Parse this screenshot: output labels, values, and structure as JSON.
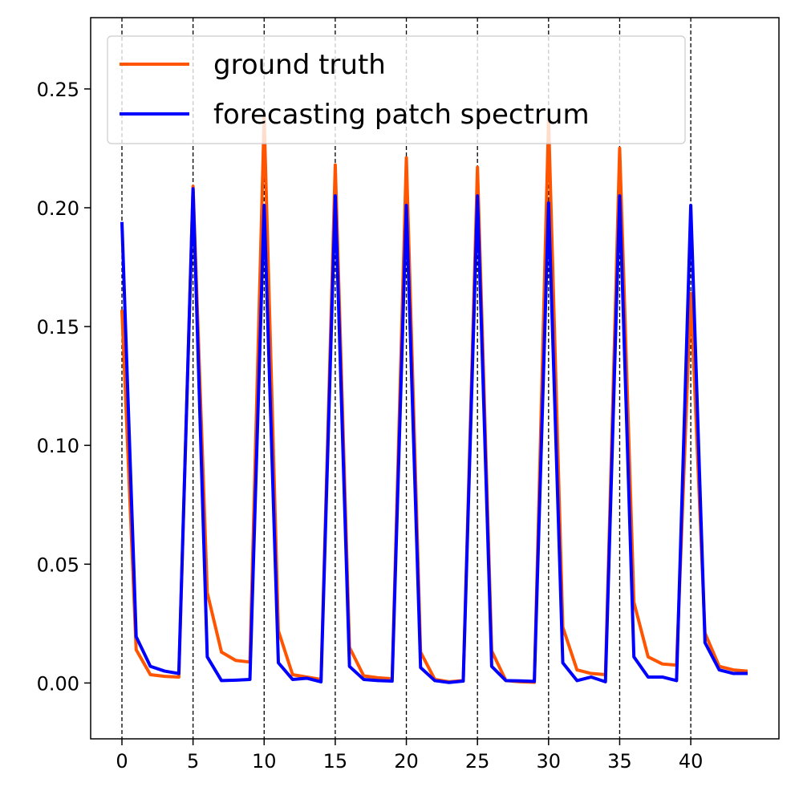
{
  "chart_data": {
    "type": "line",
    "title": "",
    "xlabel": "",
    "ylabel": "",
    "xlim": [
      -2.2,
      46.2
    ],
    "ylim": [
      -0.0235,
      0.28
    ],
    "x_ticks": [
      0,
      5,
      10,
      15,
      20,
      25,
      30,
      35,
      40
    ],
    "y_ticks": [
      0.0,
      0.05,
      0.1,
      0.15,
      0.2,
      0.25
    ],
    "x_tick_labels": [
      "0",
      "5",
      "10",
      "15",
      "20",
      "25",
      "30",
      "35",
      "40"
    ],
    "y_tick_labels": [
      "0.00",
      "0.05",
      "0.10",
      "0.15",
      "0.20",
      "0.25"
    ],
    "vlines": [
      0,
      5,
      10,
      15,
      20,
      25,
      30,
      35,
      40
    ],
    "grid": false,
    "legend_position": "top-left",
    "x": [
      0,
      1,
      2,
      3,
      4,
      5,
      6,
      7,
      8,
      9,
      10,
      11,
      12,
      13,
      14,
      15,
      16,
      17,
      18,
      19,
      20,
      21,
      22,
      23,
      24,
      25,
      26,
      27,
      28,
      29,
      30,
      31,
      32,
      33,
      34,
      35,
      36,
      37,
      38,
      39,
      40,
      41,
      42,
      43,
      44
    ],
    "series": [
      {
        "name": "ground truth",
        "color": "#ff5500",
        "values": [
          0.157,
          0.014,
          0.0035,
          0.0028,
          0.0025,
          0.209,
          0.038,
          0.013,
          0.0095,
          0.0088,
          0.238,
          0.022,
          0.0035,
          0.0025,
          0.0015,
          0.218,
          0.015,
          0.003,
          0.0022,
          0.0018,
          0.221,
          0.013,
          0.0015,
          0.0005,
          0.001,
          0.217,
          0.0135,
          0.001,
          0.0005,
          0.0003,
          0.237,
          0.0235,
          0.0055,
          0.004,
          0.0035,
          0.225,
          0.034,
          0.011,
          0.008,
          0.0075,
          0.164,
          0.021,
          0.007,
          0.0055,
          0.005
        ]
      },
      {
        "name": "forecasting patch spectrum",
        "color": "#0000ff",
        "values": [
          0.194,
          0.0195,
          0.007,
          0.005,
          0.004,
          0.208,
          0.011,
          0.001,
          0.0012,
          0.0015,
          0.201,
          0.0085,
          0.0015,
          0.002,
          0.0005,
          0.205,
          0.007,
          0.0015,
          0.001,
          0.0008,
          0.201,
          0.0065,
          0.001,
          0.0002,
          0.0008,
          0.205,
          0.007,
          0.001,
          0.0009,
          0.0007,
          0.202,
          0.0085,
          0.001,
          0.0025,
          0.0005,
          0.205,
          0.011,
          0.0025,
          0.0025,
          0.001,
          0.201,
          0.017,
          0.0055,
          0.004,
          0.004
        ]
      }
    ]
  }
}
